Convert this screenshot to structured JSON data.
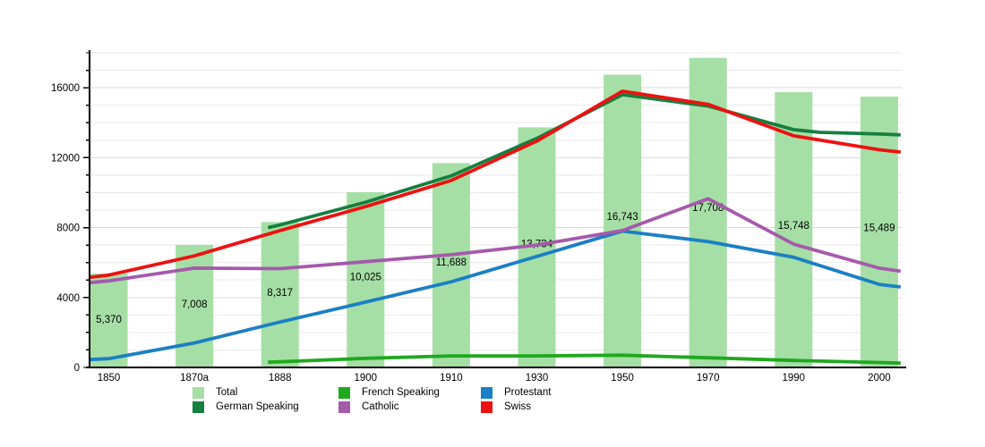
{
  "chart_data": {
    "type": "combo",
    "title": "",
    "categories": [
      "1850",
      "1870a",
      "1888",
      "1900",
      "1910",
      "1930",
      "1950",
      "1970",
      "1990",
      "2000"
    ],
    "y_axis": {
      "min": 0,
      "max": 18000,
      "major_interval": 4000,
      "minor_gridline_interval": 1000,
      "tick_labels": [
        "0",
        "4000",
        "8000",
        "12000",
        "16000"
      ]
    },
    "grid": true,
    "bar_series": {
      "name": "Total",
      "color": "#a5dfa5",
      "values": [
        5370,
        7008,
        8317,
        10025,
        11688,
        13734,
        16743,
        17708,
        15748,
        15489
      ],
      "data_labels": [
        "5,370",
        "7,008",
        "8,317",
        "10,025",
        "11,688",
        "13,734",
        "16,743",
        "17,708",
        "15,748",
        "15,489"
      ]
    },
    "line_series": [
      {
        "name": "German Speaking",
        "color": "#157f3f",
        "points": [
          [
            1.86,
            8000
          ],
          [
            2,
            8150
          ],
          [
            3,
            9450
          ],
          [
            4,
            10960
          ],
          [
            5,
            13100
          ],
          [
            6,
            15600
          ],
          [
            7,
            14950
          ],
          [
            8,
            13600
          ],
          [
            8.3,
            13450
          ],
          [
            9,
            13350
          ],
          [
            9.25,
            13300
          ]
        ]
      },
      {
        "name": "French Speaking",
        "color": "#1fa81f",
        "points": [
          [
            1.86,
            300
          ],
          [
            2,
            320
          ],
          [
            3,
            520
          ],
          [
            4,
            660
          ],
          [
            5,
            660
          ],
          [
            6,
            700
          ],
          [
            7,
            550
          ],
          [
            8,
            400
          ],
          [
            9,
            280
          ],
          [
            9.25,
            250
          ]
        ]
      },
      {
        "name": "Protestant",
        "color": "#1b7fc4",
        "points": [
          [
            -0.23,
            450
          ],
          [
            0,
            500
          ],
          [
            1,
            1400
          ],
          [
            2,
            2600
          ],
          [
            3,
            3740
          ],
          [
            4,
            4900
          ],
          [
            5,
            6350
          ],
          [
            6,
            7800
          ],
          [
            7,
            7200
          ],
          [
            8,
            6300
          ],
          [
            9,
            4750
          ],
          [
            9.25,
            4600
          ]
        ]
      },
      {
        "name": "Catholic",
        "color": "#a55aab",
        "points": [
          [
            -0.23,
            4850
          ],
          [
            0,
            4950
          ],
          [
            1,
            5680
          ],
          [
            2,
            5650
          ],
          [
            3,
            6050
          ],
          [
            4,
            6450
          ],
          [
            5,
            7000
          ],
          [
            6,
            7830
          ],
          [
            7,
            9650
          ],
          [
            8,
            7050
          ],
          [
            9,
            5680
          ],
          [
            9.25,
            5500
          ]
        ]
      },
      {
        "name": "Swiss",
        "color": "#ee1111",
        "points": [
          [
            -0.23,
            5150
          ],
          [
            0,
            5280
          ],
          [
            1,
            6380
          ],
          [
            2,
            7830
          ],
          [
            3,
            9200
          ],
          [
            4,
            10700
          ],
          [
            5,
            12950
          ],
          [
            6,
            15800
          ],
          [
            7,
            15050
          ],
          [
            8,
            13250
          ],
          [
            9,
            12450
          ],
          [
            9.25,
            12320
          ]
        ]
      }
    ],
    "legend": {
      "position": "bottom",
      "order": [
        "Total",
        "French Speaking",
        "Protestant",
        "German Speaking",
        "Catholic",
        "Swiss"
      ]
    }
  }
}
